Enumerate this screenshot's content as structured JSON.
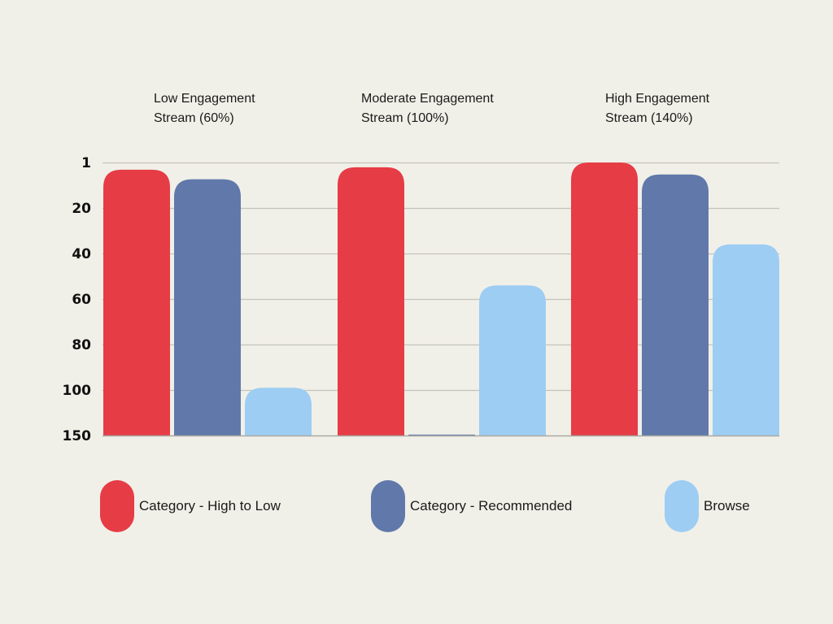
{
  "chart_data": {
    "type": "bar",
    "title": "",
    "xlabel": "",
    "ylabel": "",
    "y_inverted": true,
    "y_ticks": [
      1,
      20,
      40,
      60,
      80,
      100,
      150
    ],
    "ylim": [
      150,
      1
    ],
    "grid": true,
    "legend_position": "bottom",
    "categories": [
      "Low Engagement\nStream (60%)",
      "Moderate  Engagement\nStream (100%)",
      "High Engagement\nStream (140%)"
    ],
    "series": [
      {
        "name": "Category - High to Low",
        "color": "#e63c46",
        "values": [
          4,
          3,
          1
        ]
      },
      {
        "name": "Category - Recommended",
        "color": "#6079aa",
        "values": [
          8,
          149,
          6
        ]
      },
      {
        "name": "Browse",
        "color": "#9dcdf3",
        "values": [
          99,
          54,
          36
        ]
      }
    ]
  }
}
